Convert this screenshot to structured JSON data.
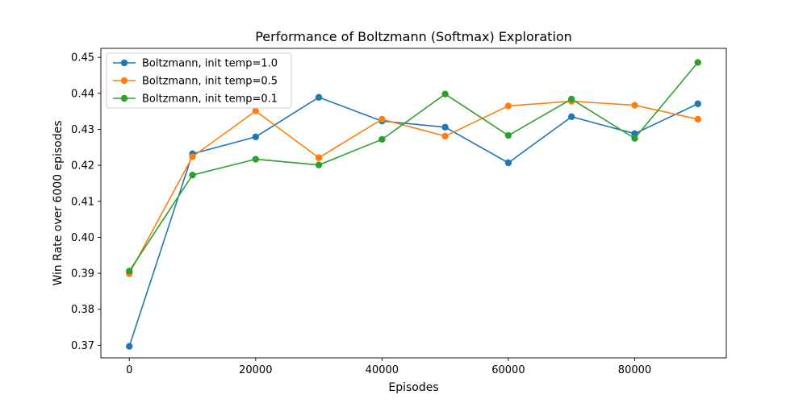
{
  "chart_data": {
    "type": "line",
    "title": "Performance of Boltzmann (Softmax) Exploration",
    "xlabel": "Episodes",
    "ylabel": "Win Rate over 6000 episodes",
    "x": [
      0,
      10000,
      20000,
      30000,
      40000,
      50000,
      60000,
      70000,
      80000,
      90000
    ],
    "xlim": [
      -4500,
      94500
    ],
    "ylim": [
      0.3665,
      0.4525
    ],
    "xticks": [
      0,
      20000,
      40000,
      60000,
      80000
    ],
    "xtick_labels": [
      "0",
      "20000",
      "40000",
      "60000",
      "80000"
    ],
    "yticks": [
      0.37,
      0.38,
      0.39,
      0.4,
      0.41,
      0.42,
      0.43,
      0.44,
      0.45
    ],
    "ytick_labels": [
      "0.37",
      "0.38",
      "0.39",
      "0.40",
      "0.41",
      "0.42",
      "0.43",
      "0.44",
      "0.45"
    ],
    "grid": false,
    "legend": "top-left",
    "series": [
      {
        "name": "Boltzmann, init temp=1.0",
        "color": "#1f77b4",
        "values": [
          0.3697,
          0.4232,
          0.4279,
          0.4389,
          0.4323,
          0.4306,
          0.4207,
          0.4335,
          0.4288,
          0.4371
        ]
      },
      {
        "name": "Boltzmann, init temp=0.5",
        "color": "#ff7f0e",
        "values": [
          0.3899,
          0.4224,
          0.4351,
          0.4221,
          0.4328,
          0.4281,
          0.4365,
          0.4378,
          0.4367,
          0.4328
        ]
      },
      {
        "name": "Boltzmann, init temp=0.1",
        "color": "#2ca02c",
        "values": [
          0.3906,
          0.4173,
          0.4217,
          0.4201,
          0.4272,
          0.4398,
          0.4283,
          0.4384,
          0.4275,
          0.4486
        ]
      }
    ]
  }
}
